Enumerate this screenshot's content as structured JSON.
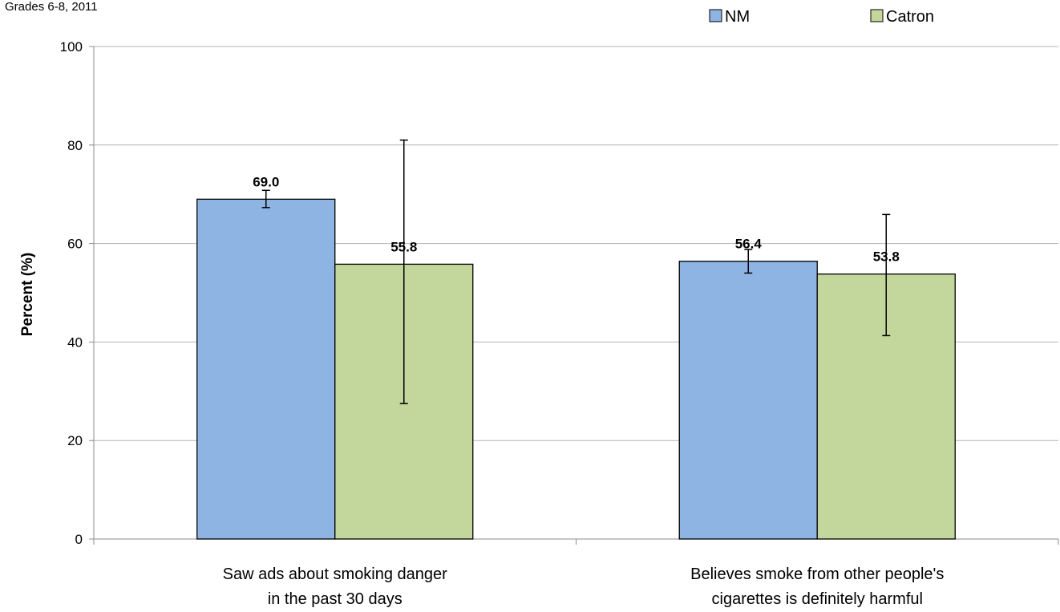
{
  "subtitle": "Grades 6-8, 2011",
  "chart_data": {
    "type": "bar",
    "categories": [
      [
        "Saw ads about smoking danger",
        "in the past 30 days"
      ],
      [
        "Believes smoke from other people's",
        "cigarettes is definitely harmful"
      ]
    ],
    "series": [
      {
        "name": "NM",
        "values": [
          69.0,
          56.4
        ],
        "ci_low": [
          67.3,
          54.0
        ],
        "ci_high": [
          70.8,
          58.8
        ],
        "color": "#8eb4e3"
      },
      {
        "name": "Catron",
        "values": [
          55.8,
          53.8
        ],
        "ci_low": [
          27.5,
          41.3
        ],
        "ci_high": [
          81.0,
          65.9
        ],
        "color": "#c3d69b"
      }
    ],
    "data_labels": [
      "69.0",
      "56.4",
      "55.8",
      "53.8"
    ],
    "ylabel": "Percent (%)",
    "ylim": [
      0,
      100
    ],
    "yticks": [
      "0",
      "20",
      "40",
      "60",
      "80",
      "100"
    ],
    "grid": true,
    "legend": "top-right"
  }
}
